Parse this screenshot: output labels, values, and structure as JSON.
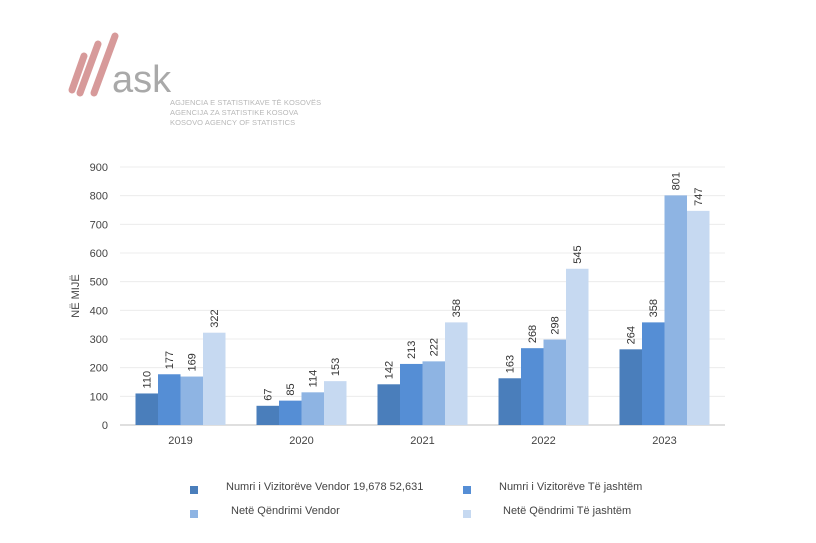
{
  "logo": {
    "word": "ask",
    "lines": [
      "AGJENCIA E STATISTIKAVE TË KOSOVËS",
      "AGENCIJA ZA STATISTIKE KOSOVA",
      "KOSOVO AGENCY OF STATISTICS"
    ]
  },
  "chart_data": {
    "type": "bar",
    "title": "",
    "xlabel": "",
    "ylabel": "NË MIJË",
    "ylim": [
      0,
      900
    ],
    "yticks": [
      "0",
      "100",
      "200",
      "300",
      "400",
      "500",
      "600",
      "700",
      "800",
      "900"
    ],
    "categories": [
      "2019",
      "2020",
      "2021",
      "2022",
      "2023"
    ],
    "series": [
      {
        "name": "Numri i Vizitorëve Vendor 19,678 52,631",
        "color": "#4a7ebb",
        "values": [
          110,
          67,
          142,
          163,
          264
        ]
      },
      {
        "name": "Numri i Vizitorëve Të jashtëm",
        "color": "#558ed5",
        "values": [
          177,
          85,
          213,
          268,
          358
        ]
      },
      {
        "name": "Netë Qëndrimi Vendor",
        "color": "#8eb4e3",
        "values": [
          169,
          114,
          222,
          298,
          801
        ]
      },
      {
        "name": "Netë Qëndrimi Të jashtëm",
        "color": "#c6d9f1",
        "values": [
          322,
          153,
          358,
          545,
          747
        ]
      }
    ],
    "grid": true,
    "legend": "bottom"
  }
}
